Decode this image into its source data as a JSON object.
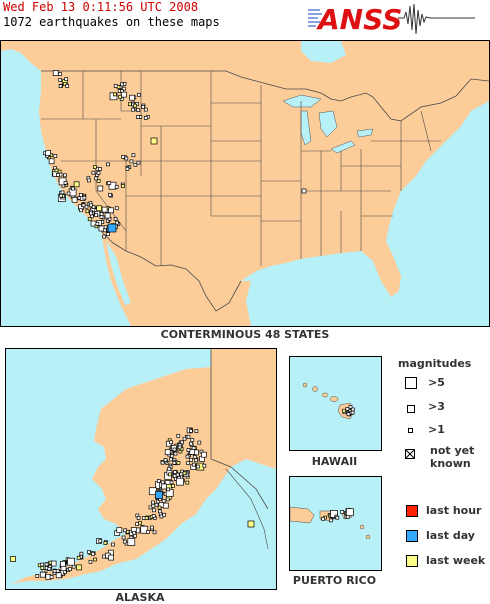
{
  "header": {
    "datetime": "Wed Feb 13 0:11:56 UTC 2008",
    "count_text": "1072 earthquakes on these maps"
  },
  "logo": {
    "text": "ANSS",
    "colors": {
      "red": "#dd1111",
      "blue": "#1144cc"
    }
  },
  "maps": {
    "conus": {
      "caption": "CONTERMINOUS 48 STATES"
    },
    "alaska": {
      "caption": "ALASKA"
    },
    "hawaii": {
      "caption": "HAWAII"
    },
    "puerto_rico": {
      "caption": "PUERTO RICO"
    }
  },
  "legend": {
    "title": "magnitudes",
    "magnitudes": [
      {
        "label": ">5",
        "symbol": "large-square"
      },
      {
        "label": ">3",
        "symbol": "medium-square"
      },
      {
        "label": ">1",
        "symbol": "small-square"
      },
      {
        "label": "not yet known",
        "symbol": "crossed-square"
      }
    ],
    "ages": [
      {
        "label": "last hour",
        "color": "#ff2200"
      },
      {
        "label": "last day",
        "color": "#33aaff"
      },
      {
        "label": "last week",
        "color": "#ffff88"
      }
    ]
  },
  "colors": {
    "water": "#b8f0f8",
    "land": "#fccc99",
    "border": "#4a4a4a"
  }
}
